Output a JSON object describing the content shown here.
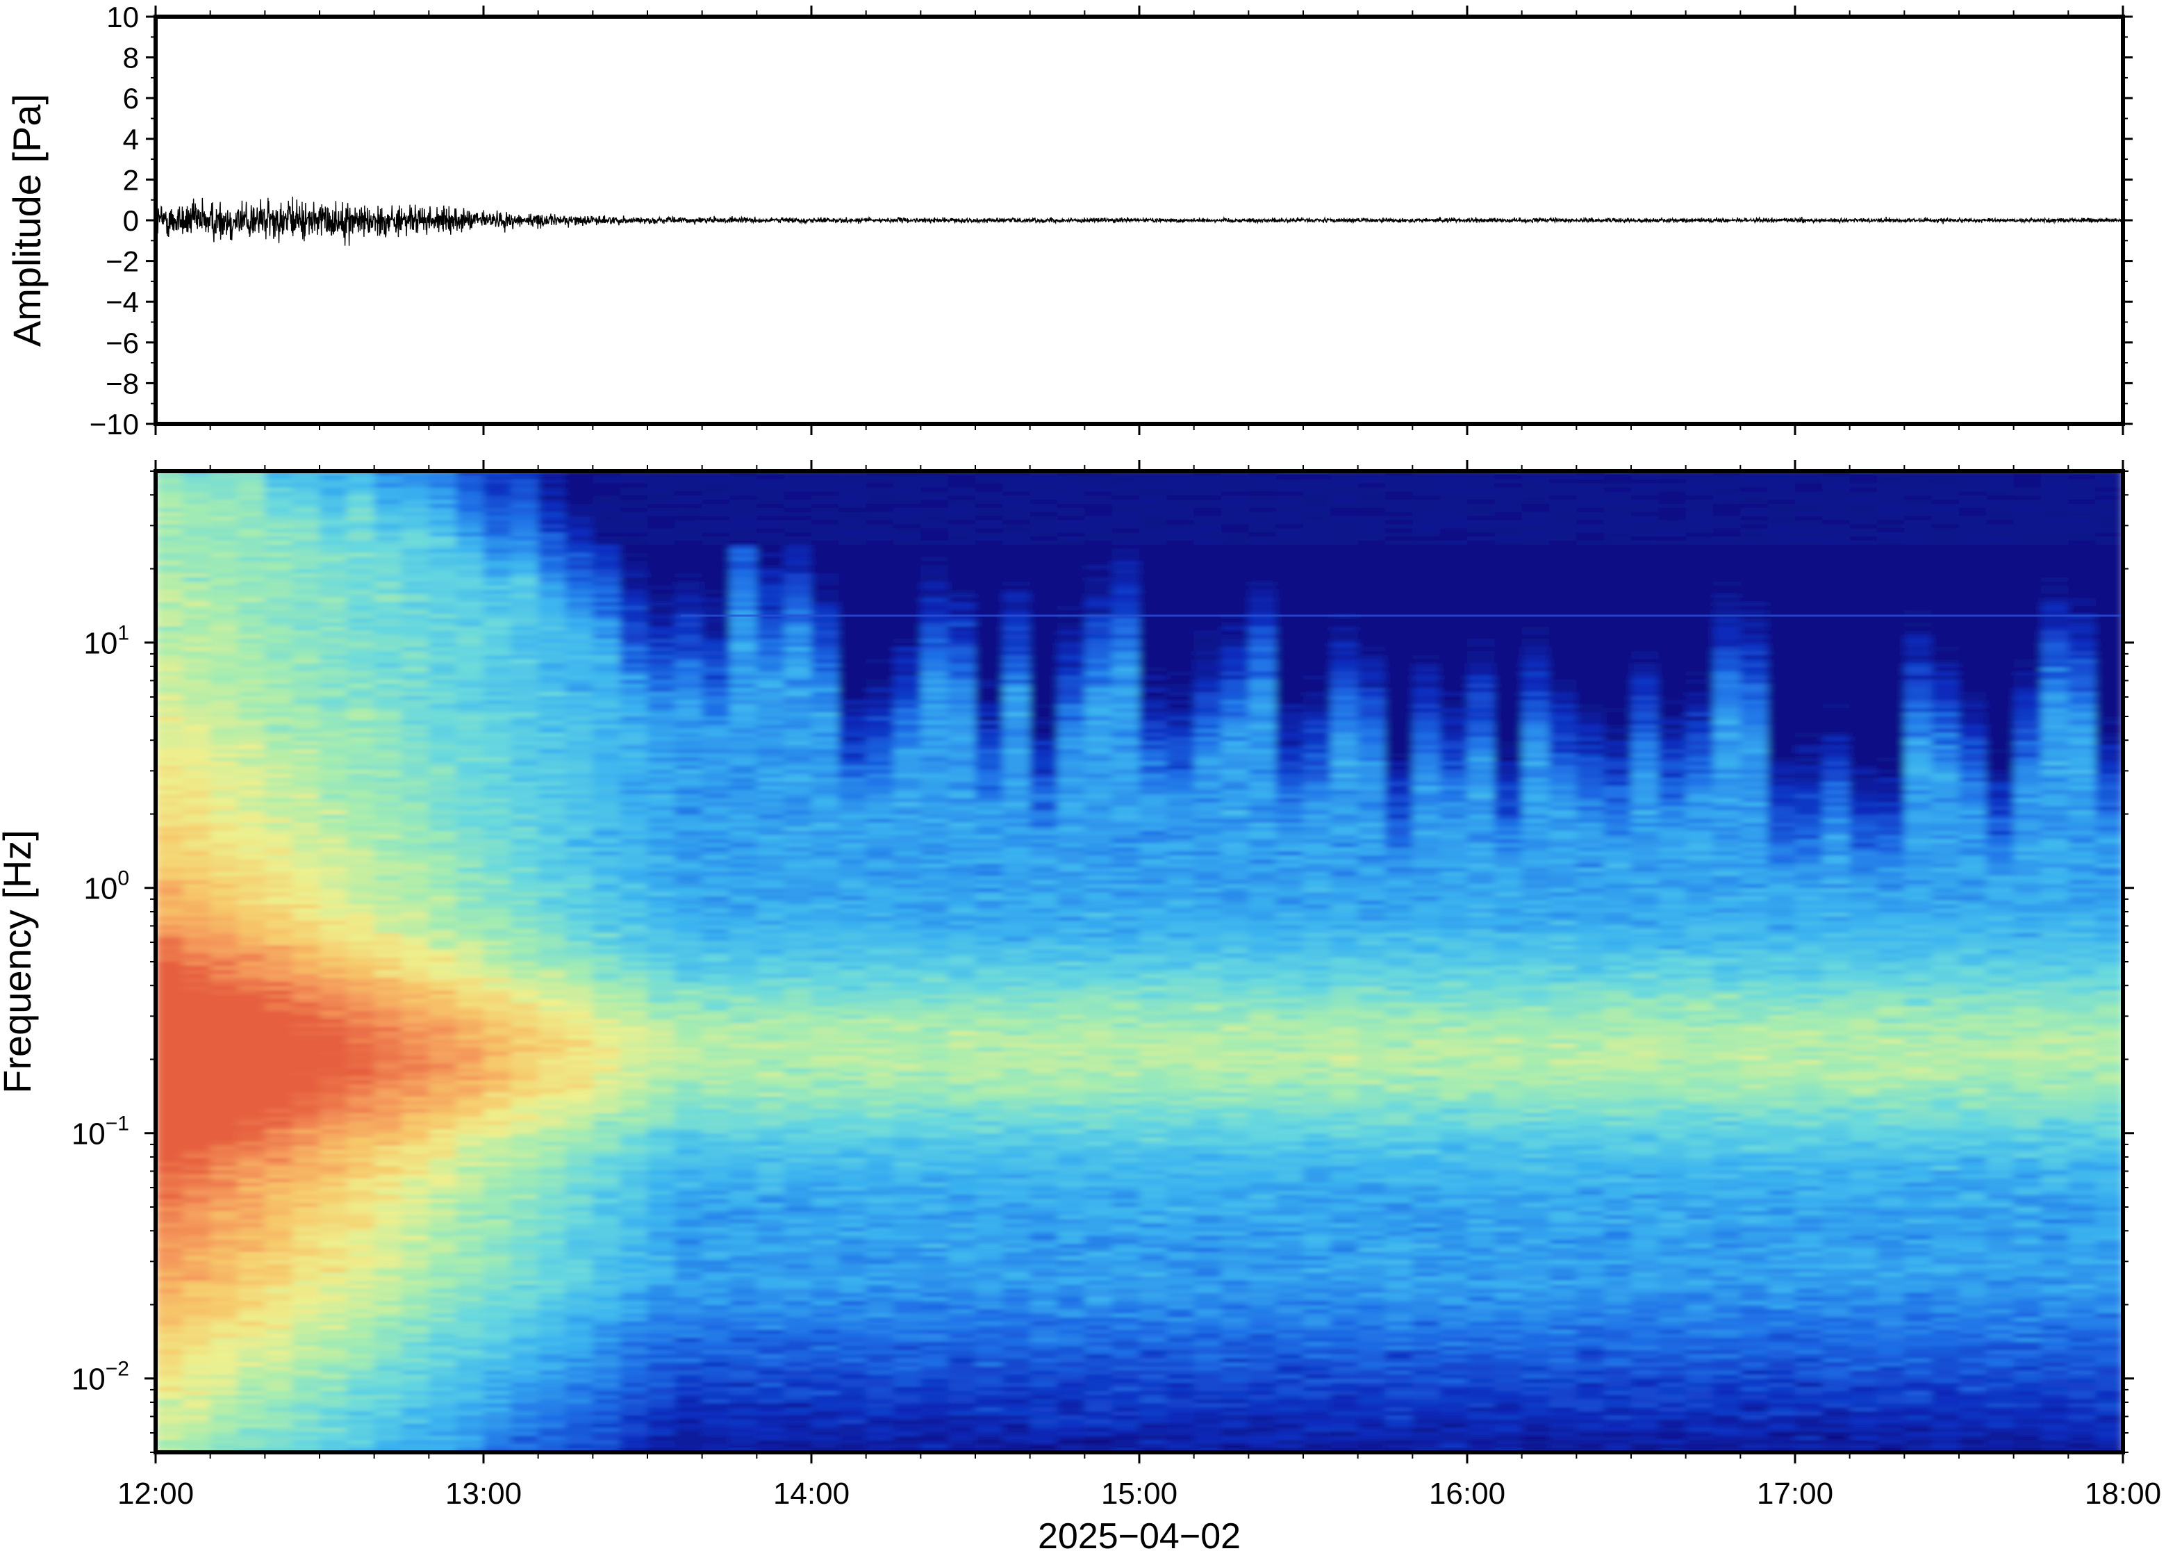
{
  "chart_data": [
    {
      "type": "line",
      "ylabel": "Amplitude [Pa]",
      "xlim": [
        "12:00",
        "18:00"
      ],
      "ylim": [
        -10,
        10
      ],
      "y_ticks": [
        10,
        8,
        6,
        4,
        2,
        0,
        -2,
        -4,
        -6,
        -8,
        -10
      ],
      "y_tick_labels": [
        "10",
        "8",
        "6",
        "4",
        "2",
        "0",
        "−2",
        "−4",
        "−6",
        "−8",
        "−10"
      ],
      "series": [
        {
          "x": [
            "12:00",
            "12:15",
            "12:30",
            "12:45",
            "13:00",
            "13:15",
            "13:30",
            "14:00",
            "15:00",
            "16:00",
            "17:00",
            "18:00"
          ],
          "envelope": [
            0.8,
            1.0,
            0.9,
            0.7,
            0.45,
            0.25,
            0.15,
            0.12,
            0.1,
            0.1,
            0.1,
            0.1
          ]
        }
      ],
      "grid": false,
      "color": "#000000"
    },
    {
      "type": "heatmap",
      "ylabel": "Frequency [Hz]",
      "xlabel": "2025−04−02",
      "x_tick_labels": [
        "12:00",
        "13:00",
        "14:00",
        "15:00",
        "16:00",
        "17:00",
        "18:00"
      ],
      "y_scale": "log",
      "ylim": [
        0.005,
        50
      ],
      "y_ticks": [
        {
          "value": 10,
          "base": "10",
          "exp": "1"
        },
        {
          "value": 1,
          "base": "10",
          "exp": "0"
        },
        {
          "value": 0.1,
          "base": "10",
          "exp": "−1"
        },
        {
          "value": 0.01,
          "base": "10",
          "exp": "−2"
        }
      ],
      "colormap": [
        "#0a0a78",
        "#0c2dbf",
        "#1f6fe6",
        "#3ab2f0",
        "#67d8df",
        "#a6ecb0",
        "#eef08e",
        "#f7c86a",
        "#f4955a",
        "#e6603f"
      ],
      "energy_decay_hours": [
        "12:00",
        "13:00",
        "13:30",
        "14:00",
        "18:00"
      ],
      "high_freq_cutoff_hz": [
        30,
        15,
        5,
        1.5,
        0.8
      ],
      "microseism_band_hz": [
        0.15,
        0.3
      ],
      "grid": false
    }
  ]
}
